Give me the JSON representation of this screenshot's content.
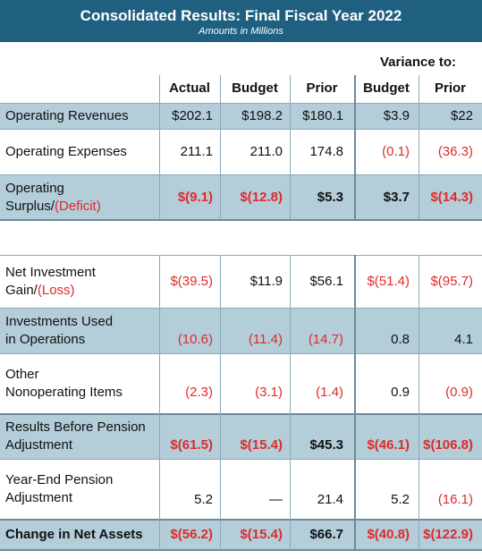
{
  "header": {
    "title": "Consolidated Results: Final Fiscal Year 2022",
    "subtitle": "Amounts in Millions"
  },
  "columns": {
    "variance_label": "Variance to:",
    "actual": "Actual",
    "budget": "Budget",
    "prior": "Prior",
    "var_budget": "Budget",
    "var_prior": "Prior"
  },
  "rows": [
    {
      "label1": "Operating Revenues",
      "label2": "",
      "actual": "$202.1",
      "budget": "$198.2",
      "prior": "$180.1",
      "var_budget": "$3.9",
      "var_prior": "$22"
    },
    {
      "label1": "Operating Expenses",
      "label2": "",
      "actual": "211.1",
      "budget": "211.0",
      "prior": "174.8",
      "var_budget": "(0.1)",
      "var_prior": "(36.3)"
    },
    {
      "label1": "Operating",
      "label2a": "Surplus/",
      "label2b": "(Deficit)",
      "actual": "$(9.1)",
      "budget": "$(12.8)",
      "prior": "$5.3",
      "var_budget": "$3.7",
      "var_prior": "$(14.3)"
    },
    {
      "label1": "Net Investment",
      "label2a": "Gain/",
      "label2b": "(Loss)",
      "actual": "$(39.5)",
      "budget": "$11.9",
      "prior": "$56.1",
      "var_budget": "$(51.4)",
      "var_prior": "$(95.7)"
    },
    {
      "label1": "Investments Used",
      "label2": "in Operations",
      "actual": "(10.6)",
      "budget": "(11.4)",
      "prior": "(14.7)",
      "var_budget": "0.8",
      "var_prior": "4.1"
    },
    {
      "label1": "Other",
      "label2": "Nonoperating Items",
      "actual": "(2.3)",
      "budget": "(3.1)",
      "prior": "(1.4)",
      "var_budget": "0.9",
      "var_prior": "(0.9)"
    },
    {
      "label1": "Results Before Pension",
      "label2": "Adjustment",
      "actual": "$(61.5)",
      "budget": "$(15.4)",
      "prior": "$45.3",
      "var_budget": "$(46.1)",
      "var_prior": "$(106.8)"
    },
    {
      "label1": "Year-End Pension",
      "label2": "Adjustment",
      "actual": "5.2",
      "budget": "—",
      "prior": "21.4",
      "var_budget": "5.2",
      "var_prior": "(16.1)"
    },
    {
      "label1": "Change in Net Assets",
      "label2": "",
      "actual": "$(56.2)",
      "budget": "$(15.4)",
      "prior": "$66.7",
      "var_budget": "$(40.8)",
      "var_prior": "$(122.9)"
    }
  ],
  "colors": {
    "header_bg": "#1f5f80",
    "shade": "#b3cdd9",
    "negative": "#e02a2a"
  }
}
